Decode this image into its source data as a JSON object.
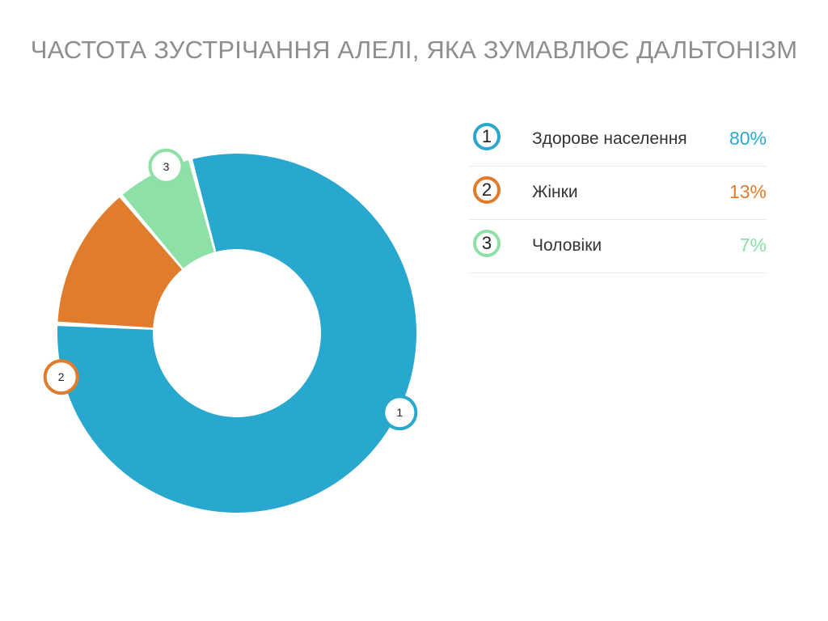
{
  "title": "ЧАСТОТА ЗУСТРІЧАННЯ АЛЕЛІ, ЯКА ЗУМАВЛЮЄ ДАЛЬТОНІЗМ",
  "chart_data": {
    "type": "pie",
    "variant": "donut",
    "title": "ЧАСТОТА ЗУСТРІЧАННЯ АЛЕЛІ, ЯКА ЗУМАВЛЮЄ ДАЛЬТОНІЗМ",
    "legend_position": "right",
    "slices": [
      {
        "marker": "1",
        "label": "Здорове населення",
        "value": 80,
        "value_label": "80%",
        "color": "#29a8cf"
      },
      {
        "marker": "2",
        "label": "Жінки",
        "value": 13,
        "value_label": "13%",
        "color": "#e07c2c"
      },
      {
        "marker": "3",
        "label": "Чоловіки",
        "value": 7,
        "value_label": "7%",
        "color": "#8de0a6"
      }
    ]
  }
}
